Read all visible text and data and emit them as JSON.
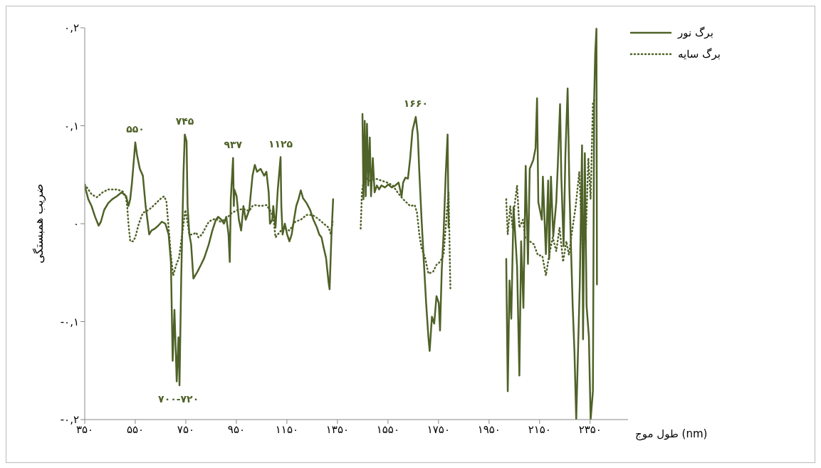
{
  "chart_data": {
    "type": "line",
    "ylabel": "ضریب همبستگی",
    "xlabel": "طول موج (nm)",
    "xlim": [
      350,
      2500
    ],
    "xticks": [
      {
        "value": 350,
        "label": "۳۵۰"
      },
      {
        "value": 550,
        "label": "۵۵۰"
      },
      {
        "value": 750,
        "label": "۷۵۰"
      },
      {
        "value": 950,
        "label": "۹۵۰"
      },
      {
        "value": 1150,
        "label": "۱۱۵۰"
      },
      {
        "value": 1350,
        "label": "۱۳۵۰"
      },
      {
        "value": 1550,
        "label": "۱۵۵۰"
      },
      {
        "value": 1750,
        "label": "۱۷۵۰"
      },
      {
        "value": 1950,
        "label": "۱۹۵۰"
      },
      {
        "value": 2150,
        "label": "۲۱۵۰"
      },
      {
        "value": 2350,
        "label": "۲۳۵۰"
      }
    ],
    "ylim": [
      -0.2,
      0.2
    ],
    "yticks": [
      {
        "value": -0.2,
        "label": "-۰,۲"
      },
      {
        "value": -0.1,
        "label": "-۰,۱"
      },
      {
        "value": 0,
        "label": "۰"
      },
      {
        "value": 0.1,
        "label": "۰,۱"
      },
      {
        "value": 0.2,
        "label": "۰,۲"
      }
    ],
    "grid": false,
    "legend": "top right",
    "marker": "none",
    "annotations": [
      {
        "text": "۵۵۰",
        "x": 550,
        "y": 0.083
      },
      {
        "text": "۷۴۵",
        "x": 746,
        "y": 0.091
      },
      {
        "text": "۹۳۷",
        "x": 937,
        "y": 0.067
      },
      {
        "text": "۱۱۲۵",
        "x": 1125,
        "y": 0.068
      },
      {
        "text": "۱۶۶۰",
        "x": 1660,
        "y": 0.109
      },
      {
        "text": "۷۰۰-۷۲۰",
        "x": 721,
        "y": -0.165
      }
    ],
    "series": [
      {
        "name": "برگ نور",
        "color": "#4f6228",
        "line_style": "solid",
        "x": [
          350,
          364,
          377,
          391,
          405,
          414,
          427,
          443,
          459,
          477,
          496,
          514,
          523,
          530,
          537,
          546,
          550,
          557,
          568,
          580,
          591,
          600,
          605,
          614,
          628,
          641,
          655,
          669,
          682,
          691,
          698,
          705,
          714,
          721,
          725,
          732,
          741,
          746,
          753,
          757,
          764,
          771,
          780,
          787,
          796,
          810,
          823,
          841,
          855,
          869,
          878,
          891,
          901,
          910,
          919,
          924,
          928,
          937,
          940,
          942,
          951,
          960,
          969,
          978,
          987,
          1001,
          1014,
          1023,
          1032,
          1046,
          1060,
          1069,
          1078,
          1083,
          1092,
          1096,
          1105,
          1114,
          1125,
          1128,
          1133,
          1142,
          1151,
          1160,
          1169,
          1178,
          1187,
          1196,
          1205,
          1214,
          1228,
          1242,
          1255,
          1269,
          1278,
          1287,
          1296,
          1305,
          1315,
          1319,
          1326,
          1333,
          1390,
          1449,
          1453,
          1458,
          1462,
          1467,
          1472,
          1478,
          1483,
          1490,
          1497,
          1506,
          1515,
          1524,
          1538,
          1551,
          1565,
          1579,
          1592,
          1604,
          1610,
          1619,
          1629,
          1638,
          1647,
          1660,
          1668,
          1674,
          1683,
          1692,
          1701,
          1710,
          1715,
          1724,
          1733,
          1742,
          1751,
          1756,
          1763,
          1770,
          1774,
          1779,
          1786,
          1790,
          1900,
          2018,
          2024,
          2031,
          2038,
          2047,
          2061,
          2070,
          2077,
          2086,
          2095,
          2104,
          2111,
          2125,
          2134,
          2140,
          2145,
          2159,
          2163,
          2175,
          2184,
          2188,
          2195,
          2204,
          2216,
          2222,
          2231,
          2236,
          2245,
          2252,
          2261,
          2268,
          2275,
          2281,
          2288,
          2295,
          2302,
          2309,
          2318,
          2322,
          2329,
          2336,
          2345,
          2352,
          2361,
          2366,
          2370,
          2375,
          2377
        ],
        "values": [
          0.039,
          0.025,
          0.018,
          0.007,
          -0.002,
          0.002,
          0.014,
          0.021,
          0.025,
          0.028,
          0.032,
          0.028,
          0.018,
          0.025,
          0.042,
          0.07,
          0.083,
          0.07,
          0.056,
          0.049,
          0.018,
          0,
          -0.011,
          -0.007,
          -0.005,
          -0.002,
          0.002,
          0,
          -0.011,
          -0.039,
          -0.14,
          -0.088,
          -0.161,
          -0.116,
          -0.165,
          -0.053,
          0.053,
          0.091,
          0.084,
          0.018,
          -0.011,
          -0.021,
          -0.056,
          -0.053,
          -0.049,
          -0.042,
          -0.035,
          -0.021,
          -0.007,
          0.004,
          0.007,
          0.004,
          0,
          0.007,
          -0.011,
          -0.039,
          0.025,
          0.067,
          0.018,
          0.035,
          0.028,
          0.004,
          -0.007,
          0.018,
          0.004,
          0.014,
          0.049,
          0.06,
          0.053,
          0.056,
          0.049,
          0.053,
          0.032,
          0,
          0.004,
          0.018,
          -0.004,
          0.035,
          0.068,
          0.018,
          -0.011,
          0,
          -0.011,
          -0.018,
          -0.011,
          0.004,
          0.018,
          0.025,
          0.034,
          0.026,
          0.021,
          0.014,
          0.004,
          -0.004,
          -0.011,
          -0.014,
          -0.025,
          -0.035,
          -0.06,
          -0.067,
          -0.014,
          0.025,
          null,
          0.112,
          0.025,
          0.105,
          0.028,
          0.102,
          0.039,
          0.088,
          0.028,
          0.067,
          0.032,
          0.039,
          0.035,
          0.039,
          0.037,
          0.04,
          0.037,
          0.039,
          0.042,
          0.028,
          0.042,
          0.047,
          0.046,
          0.067,
          0.095,
          0.109,
          0.091,
          0.053,
          0.004,
          -0.039,
          -0.081,
          -0.116,
          -0.13,
          -0.095,
          -0.102,
          -0.074,
          -0.081,
          -0.109,
          -0.046,
          -0.011,
          0.018,
          0.053,
          0.091,
          -0.004,
          null,
          -0.036,
          -0.171,
          -0.058,
          -0.097,
          0.017,
          -0.044,
          -0.155,
          -0.018,
          -0.086,
          0.059,
          -0.041,
          0.056,
          0.065,
          0.077,
          0.128,
          0.022,
          0.004,
          0.048,
          -0.031,
          0.044,
          -0.036,
          0.048,
          -0.013,
          0.022,
          0.059,
          0.122,
          0.048,
          -0.023,
          0.069,
          0.138,
          0.035,
          -0.031,
          -0.084,
          -0.131,
          -0.2,
          -0.131,
          -0.062,
          0.08,
          -0.118,
          0.072,
          -0.084,
          -0.115,
          -0.2,
          -0.171,
          0.128,
          0.173,
          0.199,
          -0.062
        ]
      },
      {
        "name": "برگ سایه",
        "color": "#4f6228",
        "line_style": "dotted",
        "x": [
          350,
          364,
          377,
          398,
          421,
          443,
          477,
          500,
          512,
          518,
          523,
          530,
          541,
          550,
          564,
          580,
          603,
          625,
          648,
          664,
          673,
          682,
          691,
          700,
          712,
          723,
          732,
          741,
          748,
          755,
          764,
          778,
          791,
          800,
          814,
          828,
          841,
          855,
          869,
          887,
          910,
          932,
          955,
          978,
          1001,
          1014,
          1023,
          1046,
          1069,
          1083,
          1096,
          1105,
          1114,
          1137,
          1160,
          1183,
          1205,
          1228,
          1251,
          1274,
          1296,
          1315,
          1324,
          1331,
          1390,
          1442,
          1447,
          1456,
          1467,
          1478,
          1501,
          1524,
          1547,
          1569,
          1588,
          1610,
          1638,
          1656,
          1665,
          1674,
          1683,
          1697,
          1710,
          1729,
          1742,
          1756,
          1770,
          1783,
          1790,
          1797,
          1900,
          2018,
          2024,
          2034,
          2043,
          2052,
          2061,
          2070,
          2084,
          2093,
          2111,
          2127,
          2143,
          2161,
          2175,
          2188,
          2202,
          2216,
          2229,
          2243,
          2256,
          2266,
          2279,
          2293,
          2307,
          2320,
          2334,
          2343,
          2352,
          2361,
          2366
        ],
        "values": [
          0.04,
          0.035,
          0.03,
          0.027,
          0.032,
          0.035,
          0.035,
          0.033,
          0.028,
          0.018,
          0,
          -0.018,
          -0.018,
          -0.014,
          0,
          0.011,
          0.014,
          0.019,
          0.025,
          0.028,
          0.023,
          -0.004,
          -0.032,
          -0.053,
          -0.042,
          -0.035,
          -0.018,
          0,
          0.014,
          0.004,
          -0.011,
          -0.011,
          -0.009,
          -0.014,
          -0.011,
          -0.004,
          0.002,
          0.004,
          0.005,
          0.002,
          0.005,
          0.011,
          0.014,
          0.015,
          0.013,
          0.018,
          0.019,
          0.018,
          0.019,
          0.014,
          0.007,
          -0.014,
          -0.011,
          -0.004,
          -0.007,
          0.002,
          0.004,
          0.009,
          0.009,
          0.005,
          0,
          -0.004,
          -0.011,
          0.002,
          null,
          -0.005,
          0.032,
          0.049,
          0.046,
          0.044,
          0.046,
          0.044,
          0.042,
          0.039,
          0.032,
          0.025,
          0.018,
          0.019,
          0.011,
          -0.011,
          -0.025,
          -0.035,
          -0.051,
          -0.049,
          -0.042,
          -0.039,
          -0.032,
          0.011,
          0.032,
          -0.067,
          null,
          0.025,
          -0.011,
          0.018,
          -0.004,
          0.021,
          0.039,
          -0.004,
          0.004,
          -0.014,
          -0.018,
          -0.021,
          -0.032,
          -0.033,
          -0.053,
          -0.032,
          -0.014,
          -0.028,
          -0.004,
          -0.039,
          -0.018,
          -0.032,
          -0.007,
          0.018,
          0.053,
          -0.025,
          -0.004,
          0.067,
          0.025,
          0.123,
          0.126
        ]
      }
    ]
  }
}
